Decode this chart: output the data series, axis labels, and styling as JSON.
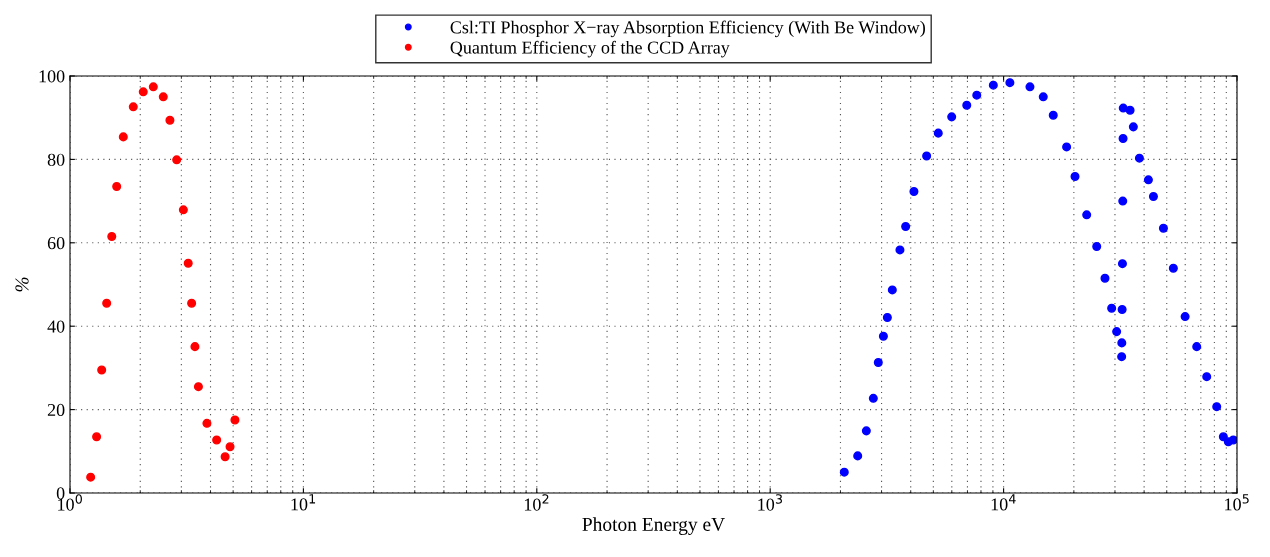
{
  "chart_data": {
    "type": "scatter",
    "xlabel": "Photon Energy eV",
    "ylabel": "%",
    "log": "x",
    "grid": true,
    "legend": "top",
    "marker": "circle",
    "xlim": [
      1,
      100000
    ],
    "xticks": [
      {
        "value": 1,
        "label": "10$^{0}$"
      },
      {
        "value": 10,
        "label": "10$^{1}$"
      },
      {
        "value": 100,
        "label": "10$^{2}$"
      },
      {
        "value": 1000,
        "label": "10$^{3}$"
      },
      {
        "value": 10000,
        "label": "10$^{4}$"
      },
      {
        "value": 100000,
        "label": "10$^{5}$"
      }
    ],
    "ylim": [
      0,
      100
    ],
    "yticks": [
      0,
      20,
      40,
      60,
      80,
      100
    ],
    "series": [
      {
        "name": "Csl:TI Phosphor X−ray Absorption Efficiency (With Be Window)",
        "color": "#0000ff",
        "x": [
          2077,
          2371,
          2582,
          2766,
          2905,
          3055,
          3177,
          3336,
          3597,
          3805,
          4129,
          4680,
          5249,
          5993,
          6953,
          7674,
          9036,
          10640,
          12970,
          14790,
          16320,
          18620,
          20230,
          22700,
          25060,
          27190,
          29040,
          30500,
          32050,
          32100,
          32200,
          32300,
          32400,
          32500,
          32560,
          34830,
          35970,
          38190,
          41730,
          43850,
          48390,
          53370,
          59940,
          67210,
          74180,
          81870,
          87400,
          91800,
          96400
        ],
        "values": [
          5,
          8.9,
          14.9,
          22.7,
          31.3,
          37.6,
          42.1,
          48.7,
          58.3,
          63.9,
          72.3,
          80.8,
          86.3,
          90.2,
          93,
          95.4,
          97.8,
          98.4,
          97.4,
          95,
          90.6,
          83,
          75.9,
          66.7,
          59.1,
          51.5,
          44.3,
          38.7,
          32.7,
          36,
          44,
          55,
          70,
          85,
          92.3,
          91.8,
          87.8,
          80.3,
          75.1,
          71.1,
          63.5,
          53.9,
          42.3,
          35.1,
          27.9,
          20.7,
          13.5,
          12.3,
          12.7
        ]
      },
      {
        "name": "Quantum Efficiency of the CCD Array",
        "color": "#ff0000",
        "x": [
          1.226,
          1.3,
          1.367,
          1.436,
          1.51,
          1.585,
          1.692,
          1.867,
          2.06,
          2.275,
          2.51,
          2.68,
          2.865,
          3.06,
          3.21,
          3.32,
          3.43,
          3.55,
          3.86,
          4.25,
          4.62,
          4.85,
          5.09
        ],
        "values": [
          3.8,
          13.5,
          29.5,
          45.5,
          61.5,
          73.5,
          85.4,
          92.6,
          96.2,
          97.4,
          95,
          89.4,
          79.9,
          67.9,
          55.1,
          45.5,
          35.1,
          25.5,
          16.7,
          12.7,
          8.7,
          11.1,
          17.5
        ]
      }
    ]
  }
}
